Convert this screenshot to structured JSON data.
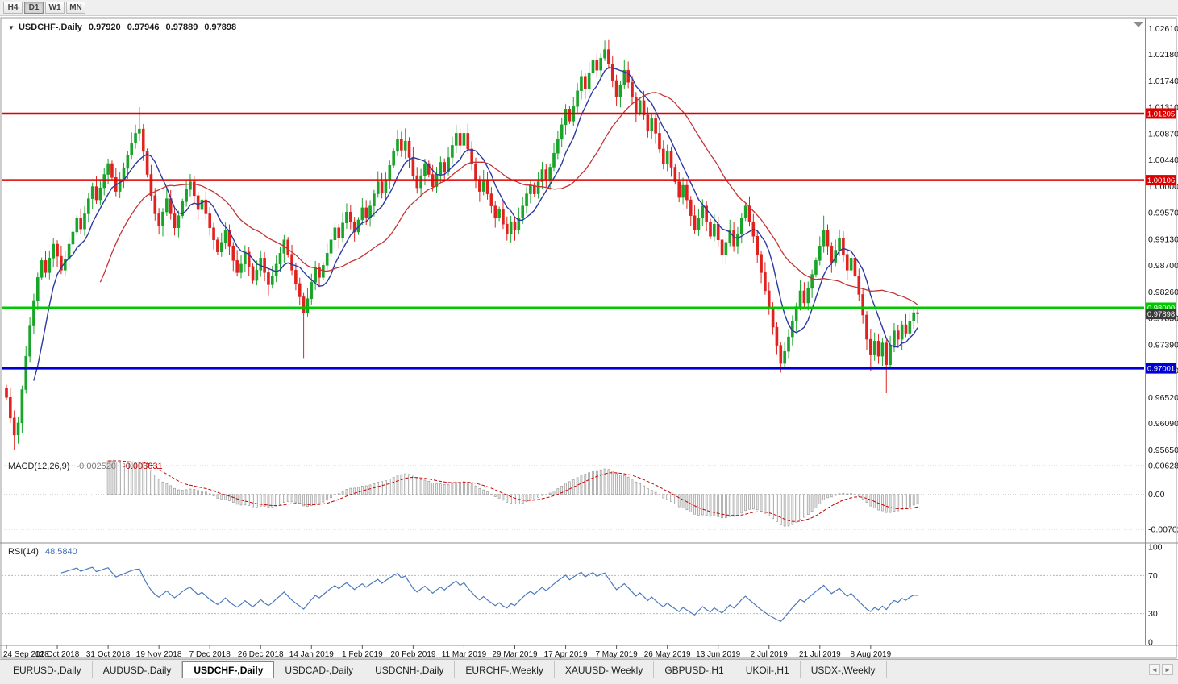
{
  "toolbar": {
    "timeframes": [
      {
        "label": "H4",
        "active": false
      },
      {
        "label": "D1",
        "active": true
      },
      {
        "label": "W1",
        "active": false
      },
      {
        "label": "MN",
        "active": false
      }
    ]
  },
  "header": {
    "collapse_icon": "▼",
    "symbol": "USDCHF-,Daily",
    "open": "0.97920",
    "high": "0.97946",
    "low": "0.97889",
    "close": "0.97898"
  },
  "chart_data": {
    "type": "candlestick",
    "symbol": "USDCHF",
    "period": "Daily",
    "x_tick_labels": [
      "24 Sep 2018",
      "12 Oct 2018",
      "31 Oct 2018",
      "19 Nov 2018",
      "7 Dec 2018",
      "26 Dec 2018",
      "14 Jan 2019",
      "1 Feb 2019",
      "20 Feb 2019",
      "11 Mar 2019",
      "29 Mar 2019",
      "17 Apr 2019",
      "7 May 2019",
      "26 May 2019",
      "13 Jun 2019",
      "2 Jul 2019",
      "21 Jul 2019",
      "8 Aug 2019"
    ],
    "x_tick_step": 13,
    "y_axis": {
      "tick_labels": [
        "1.02610",
        "1.02180",
        "1.01740",
        "1.01310",
        "1.00870",
        "1.00440",
        "1.00000",
        "0.99570",
        "0.99130",
        "0.98700",
        "0.98260",
        "0.97830",
        "0.97390",
        "0.96960",
        "0.96520",
        "0.96090",
        "0.95650"
      ],
      "view_max": 1.0272,
      "view_min": 0.9554
    },
    "candles": {
      "up_color": "#18a428",
      "down_color": "#df221f",
      "base_wick": 0.0014,
      "first_open": 0.9668,
      "closes": [
        0.9652,
        0.9618,
        0.959,
        0.961,
        0.9665,
        0.972,
        0.977,
        0.9812,
        0.985,
        0.9878,
        0.9858,
        0.9882,
        0.9905,
        0.9885,
        0.9862,
        0.988,
        0.9905,
        0.9925,
        0.9948,
        0.993,
        0.9955,
        0.998,
        1.0,
        0.9978,
        0.9998,
        1.002,
        1.0038,
        1.0015,
        0.9992,
        1.0012,
        1.003,
        1.0052,
        1.0072,
        1.0088,
        1.0095,
        1.0058,
        1.002,
        0.9985,
        0.9955,
        0.9935,
        0.9958,
        0.998,
        0.9955,
        0.9932,
        0.9952,
        0.9975,
        0.9995,
        1.0008,
        0.9985,
        0.9962,
        0.9978,
        0.9955,
        0.9932,
        0.9912,
        0.9892,
        0.9908,
        0.9928,
        0.9902,
        0.9878,
        0.9858,
        0.9872,
        0.9892,
        0.9868,
        0.9845,
        0.9862,
        0.9882,
        0.9858,
        0.9838,
        0.9852,
        0.9872,
        0.989,
        0.9912,
        0.9888,
        0.9862,
        0.984,
        0.9818,
        0.9792,
        0.9815,
        0.9842,
        0.9866,
        0.985,
        0.987,
        0.989,
        0.9912,
        0.9932,
        0.9915,
        0.994,
        0.9958,
        0.9942,
        0.9925,
        0.9945,
        0.9965,
        0.9948,
        0.9968,
        0.9988,
        1.0008,
        0.999,
        1.0012,
        1.0035,
        1.0058,
        1.0078,
        1.006,
        1.0075,
        1.0048,
        1.0018,
        0.9998,
        1.0018,
        1.0038,
        1.002,
        1.0,
        1.002,
        1.004,
        1.0025,
        1.0048,
        1.0068,
        1.0088,
        1.0068,
        1.0088,
        1.0062,
        1.0038,
        1.0012,
        0.9992,
        1.001,
        0.9988,
        0.9968,
        0.9948,
        0.9962,
        0.9938,
        0.9922,
        0.9942,
        0.9928,
        0.9948,
        0.9968,
        0.9988,
        1.0002,
        0.9988,
        1.0008,
        1.0028,
        1.0012,
        1.0032,
        1.0055,
        1.0078,
        1.0102,
        1.0128,
        1.0108,
        1.0132,
        1.0158,
        1.0182,
        1.0162,
        1.0188,
        1.0208,
        1.0192,
        1.0212,
        1.0226,
        1.0202,
        1.0175,
        1.0148,
        1.0168,
        1.0192,
        1.0172,
        1.0148,
        1.0122,
        1.0142,
        1.0118,
        1.0092,
        1.0112,
        1.0088,
        1.0062,
        1.0038,
        1.0058,
        1.0032,
        1.0008,
        0.9982,
        1.0002,
        0.9978,
        0.9952,
        0.9928,
        0.9948,
        0.9968,
        0.9942,
        0.9918,
        0.9938,
        0.9912,
        0.9888,
        0.9908,
        0.9928,
        0.9902,
        0.9922,
        0.9948,
        0.9968,
        0.9942,
        0.9918,
        0.9888,
        0.9858,
        0.9828,
        0.9798,
        0.9768,
        0.9738,
        0.9708,
        0.9728,
        0.9752,
        0.9778,
        0.9802,
        0.9828,
        0.9808,
        0.9832,
        0.9855,
        0.9878,
        0.9902,
        0.9928,
        0.9902,
        0.9875,
        0.9895,
        0.9915,
        0.9888,
        0.9862,
        0.9882,
        0.9852,
        0.9822,
        0.9788,
        0.9748,
        0.9722,
        0.9745,
        0.972,
        0.9742,
        0.9706,
        0.9738,
        0.9762,
        0.9748,
        0.9772,
        0.9758,
        0.9778,
        0.9792,
        0.979
      ],
      "high_overrides": {
        "34": 1.0131,
        "100": 1.0092,
        "102": 1.0096,
        "115": 1.0102,
        "117": 1.0098,
        "153": 1.0241,
        "209": 0.9952
      },
      "low_overrides": {
        "2": 0.9566,
        "76": 0.9717,
        "198": 0.9693,
        "221": 0.9696,
        "225": 0.9659
      }
    },
    "overlays": [
      {
        "name": "ma-fast",
        "period": 8,
        "color": "#2b3aa0",
        "width": 1.4
      },
      {
        "name": "ma-slow",
        "period": 25,
        "color": "#c33434",
        "width": 1.3
      }
    ],
    "h_lines": [
      {
        "price": 1.01205,
        "tag": "1.01205",
        "color": "#dd0000",
        "width": 2.5
      },
      {
        "price": 1.00106,
        "tag": "1.00106",
        "color": "#dd0000",
        "width": 2.5
      },
      {
        "price": 0.98,
        "tag": "0.98000",
        "color": "#00c800",
        "width": 3
      },
      {
        "price": 0.97001,
        "tag": "0.97001",
        "color": "#0000d6",
        "width": 3
      }
    ],
    "current_price": {
      "value": 0.97898,
      "tag": "0.97898",
      "bg": "#3a3a3a"
    },
    "macd": {
      "label": "MACD(12,26,9)",
      "main_value": "-0.002520",
      "signal_value": "-0.003631",
      "fast": 12,
      "slow": 26,
      "signal": 9,
      "scale": [
        {
          "label": "0.006286",
          "value": 0.006286
        },
        {
          "label": "0.00",
          "value": 0
        },
        {
          "label": "-0.00762",
          "value": -0.00762
        }
      ],
      "hist_fill": "#f3f3f3",
      "hist_stroke": "#999999",
      "signal_color": "#cc0000"
    },
    "rsi": {
      "label": "RSI(14)",
      "value": "48.5840",
      "period": 14,
      "levels": [
        70,
        30
      ],
      "scale": [
        {
          "label": "100",
          "value": 100
        },
        {
          "label": "70",
          "value": 70
        },
        {
          "label": "30",
          "value": 30
        },
        {
          "label": "0",
          "value": 0
        }
      ],
      "color": "#4a79bd"
    }
  },
  "tabs": [
    {
      "label": "EURUSD-,Daily",
      "active": false
    },
    {
      "label": "AUDUSD-,Daily",
      "active": false
    },
    {
      "label": "USDCHF-,Daily",
      "active": true
    },
    {
      "label": "USDCAD-,Daily",
      "active": false
    },
    {
      "label": "USDCNH-,Daily",
      "active": false
    },
    {
      "label": "EURCHF-,Weekly",
      "active": false
    },
    {
      "label": "XAUUSD-,Weekly",
      "active": false
    },
    {
      "label": "GBPUSD-,H1",
      "active": false
    },
    {
      "label": "UKOil-,H1",
      "active": false
    },
    {
      "label": "USDX-,Weekly",
      "active": false
    }
  ]
}
